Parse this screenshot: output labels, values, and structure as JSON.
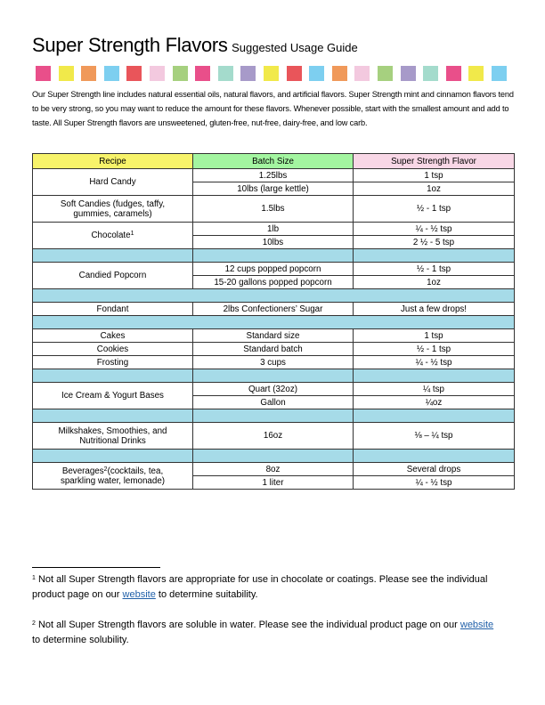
{
  "title": {
    "main": "Super Strength Flavors",
    "sub": "Suggested Usage Guide"
  },
  "swatch_colors": [
    "#e94f8a",
    "#f1e94a",
    "#f0995a",
    "#7dcff0",
    "#e9555a",
    "#f3c9df",
    "#a6d07f",
    "#e94f8a",
    "#a4dbcc",
    "#a79ac9",
    "#f1e94a",
    "#e9555a",
    "#7dcff0",
    "#f0995a",
    "#f3c9df",
    "#a6d07f",
    "#a79ac9",
    "#a4dbcc",
    "#e94f8a",
    "#f1e94a",
    "#7dcff0"
  ],
  "intro": "Our Super Strength line includes natural essential oils, natural flavors, and artificial flavors. Super Strength mint and cinnamon flavors tend to be very strong, so you may want to reduce the amount for these flavors. Whenever possible, start with the smallest amount and add to taste. All Super Strength flavors are unsweetened, gluten-free, nut-free, dairy-free, and low carb.",
  "table": {
    "headers": [
      "Recipe",
      "Batch Size",
      "Super Strength Flavor"
    ],
    "header_colors": [
      "#f7f36a",
      "#a3f5a0",
      "#f8d7e6"
    ],
    "hard_candy": {
      "recipe": "Hard Candy",
      "rows": [
        [
          "1.25lbs",
          "1 tsp"
        ],
        [
          "10lbs (large kettle)",
          "1oz"
        ]
      ]
    },
    "soft_candies": {
      "recipe": "Soft Candies (fudges, taffy, gummies, caramels)",
      "batch": "1.5lbs",
      "flavor": "½ - 1 tsp"
    },
    "chocolate": {
      "recipe": "Chocolate",
      "sup": "1",
      "rows": [
        [
          "1lb",
          "¼ - ½ tsp"
        ],
        [
          "10lbs",
          "2 ½ - 5 tsp"
        ]
      ]
    },
    "popcorn": {
      "recipe": "Candied Popcorn",
      "rows": [
        [
          "12 cups popped popcorn",
          "½ - 1 tsp"
        ],
        [
          "15-20 gallons popped popcorn",
          "1oz"
        ]
      ]
    },
    "fondant": {
      "recipe": "Fondant",
      "batch": "2lbs Confectioners’ Sugar",
      "flavor": "Just a few drops!"
    },
    "cakes": {
      "recipe": "Cakes",
      "batch": "Standard size",
      "flavor": "1 tsp"
    },
    "cookies": {
      "recipe": "Cookies",
      "batch": "Standard batch",
      "flavor": "½ - 1 tsp"
    },
    "frosting": {
      "recipe": "Frosting",
      "batch": "3 cups",
      "flavor": "¼ - ½ tsp"
    },
    "ice_cream": {
      "recipe": "Ice Cream & Yogurt Bases",
      "rows": [
        [
          "Quart (32oz)",
          "¼ tsp"
        ],
        [
          "Gallon",
          "¼oz"
        ]
      ]
    },
    "milkshakes": {
      "recipe": "Milkshakes, Smoothies, and Nutritional Drinks",
      "batch": "16oz",
      "flavor": "⅛ – ¼ tsp"
    },
    "beverages": {
      "recipe": "Beverages",
      "sup": "2",
      "recipe_rest": "(cocktails, tea, sparkling water, lemonade)",
      "rows": [
        [
          "8oz",
          "Several drops"
        ],
        [
          "1 liter",
          "¼ - ½ tsp"
        ]
      ]
    }
  },
  "footnotes": [
    {
      "num": "1",
      "before": "Not all Super Strength flavors are appropriate for use in chocolate or coatings. Please see the individual product page on our ",
      "link": "website",
      "after": " to determine suitability."
    },
    {
      "num": "2",
      "before": "Not all Super Strength flavors are soluble in water. Please see the individual product page on our ",
      "link": "website",
      "after": " to determine solubility."
    }
  ]
}
